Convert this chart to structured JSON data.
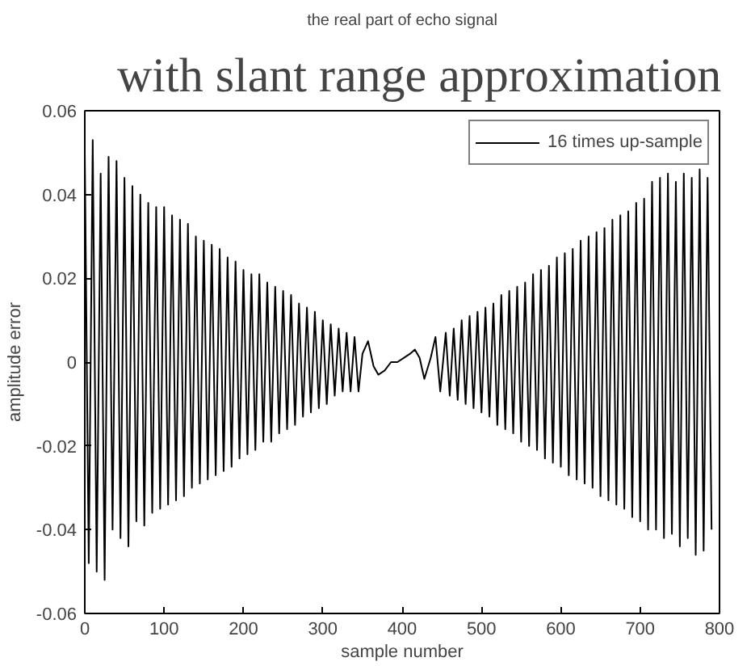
{
  "chart_data": {
    "type": "line",
    "title": "with slant range approximation",
    "subtitle": "the real part of echo signal",
    "xlabel": "sample number",
    "ylabel": "amplitude error",
    "x": [
      0,
      5,
      10,
      15,
      20,
      25,
      30,
      35,
      40,
      45,
      50,
      55,
      60,
      65,
      70,
      75,
      80,
      85,
      90,
      95,
      100,
      105,
      110,
      115,
      120,
      125,
      130,
      135,
      140,
      145,
      150,
      155,
      160,
      165,
      170,
      175,
      180,
      185,
      190,
      195,
      200,
      205,
      210,
      215,
      220,
      225,
      230,
      235,
      240,
      245,
      250,
      255,
      260,
      265,
      270,
      275,
      280,
      285,
      290,
      295,
      300,
      305,
      310,
      315,
      320,
      325,
      330,
      335,
      340,
      345,
      350,
      357,
      364,
      370,
      378,
      386,
      394,
      402,
      410,
      416,
      422,
      428,
      436,
      442,
      448,
      455,
      460,
      465,
      470,
      475,
      480,
      485,
      490,
      495,
      500,
      505,
      510,
      515,
      520,
      525,
      530,
      535,
      540,
      545,
      550,
      555,
      560,
      565,
      570,
      575,
      580,
      585,
      590,
      595,
      600,
      605,
      610,
      615,
      620,
      625,
      630,
      635,
      640,
      645,
      650,
      655,
      660,
      665,
      670,
      675,
      680,
      685,
      690,
      695,
      700,
      705,
      710,
      715,
      720,
      725,
      730,
      735,
      740,
      745,
      750,
      755,
      760,
      765,
      770,
      775,
      780,
      785,
      790
    ],
    "series": [
      {
        "name": "16 times up-sample",
        "color": "#000000",
        "values": [
          0.05,
          -0.048,
          0.053,
          -0.05,
          0.045,
          -0.052,
          0.049,
          -0.04,
          0.048,
          -0.042,
          0.044,
          -0.044,
          0.042,
          -0.038,
          0.04,
          -0.039,
          0.038,
          -0.036,
          0.037,
          -0.035,
          0.037,
          -0.034,
          0.035,
          -0.033,
          0.034,
          -0.032,
          0.033,
          -0.03,
          0.03,
          -0.029,
          0.029,
          -0.028,
          0.028,
          -0.027,
          0.027,
          -0.026,
          0.025,
          -0.025,
          0.024,
          -0.023,
          0.022,
          -0.022,
          0.021,
          -0.021,
          0.021,
          -0.019,
          0.019,
          -0.019,
          0.018,
          -0.017,
          0.017,
          -0.016,
          0.016,
          -0.015,
          0.014,
          -0.013,
          0.013,
          -0.012,
          0.012,
          -0.011,
          0.01,
          -0.01,
          0.009,
          -0.008,
          0.008,
          -0.007,
          0.007,
          -0.007,
          0.006,
          -0.007,
          0.002,
          0.005,
          -0.001,
          -0.003,
          -0.002,
          0.0,
          0.0,
          0.001,
          0.002,
          0.003,
          0.001,
          -0.004,
          0.001,
          0.006,
          -0.007,
          0.007,
          -0.008,
          0.008,
          -0.009,
          0.01,
          -0.01,
          0.011,
          -0.011,
          0.012,
          -0.012,
          0.013,
          -0.013,
          0.014,
          -0.015,
          0.016,
          -0.016,
          0.017,
          -0.017,
          0.018,
          -0.019,
          0.019,
          -0.02,
          0.021,
          -0.021,
          0.022,
          -0.023,
          0.023,
          -0.024,
          0.025,
          -0.025,
          0.026,
          -0.027,
          0.027,
          -0.028,
          0.029,
          -0.029,
          0.03,
          -0.03,
          0.031,
          -0.032,
          0.032,
          -0.033,
          0.034,
          -0.034,
          0.035,
          -0.035,
          0.036,
          -0.037,
          0.038,
          -0.038,
          0.039,
          -0.04,
          0.043,
          -0.04,
          0.044,
          -0.042,
          0.045,
          -0.041,
          0.043,
          -0.044,
          0.045,
          -0.042,
          0.044,
          -0.046,
          0.046,
          -0.045,
          0.044,
          -0.04
        ]
      }
    ],
    "xlim": [
      0,
      800
    ],
    "ylim": [
      -0.06,
      0.06
    ],
    "xticks": [
      0,
      100,
      200,
      300,
      400,
      500,
      600,
      700,
      800
    ],
    "yticks": [
      -0.06,
      -0.04,
      -0.02,
      0,
      0.02,
      0.04,
      0.06
    ],
    "grid": false,
    "legend": "top right",
    "marker": "none",
    "line_style": "solid"
  }
}
